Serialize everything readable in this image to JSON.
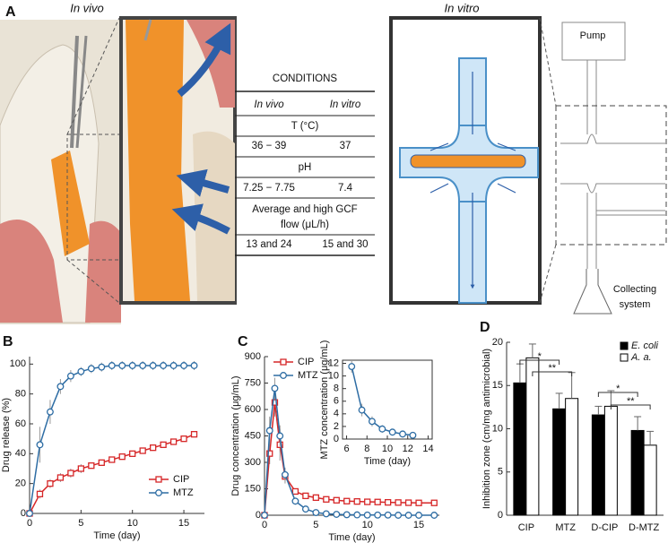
{
  "panel_a": {
    "label": "A",
    "in_vivo": "In vivo",
    "in_vitro": "In vitro",
    "table": {
      "title": "CONDITIONS",
      "columns": [
        "In vivo",
        "In vitro"
      ],
      "rows": [
        {
          "heading": [
            "T (°C)"
          ],
          "values": [
            "36 − 39",
            "37"
          ]
        },
        {
          "heading": [
            "pH"
          ],
          "values": [
            "7.25 − 7.75",
            "7.4"
          ]
        },
        {
          "heading": [
            "Average and high GCF",
            "flow (μL/h)"
          ],
          "values": [
            "13 and 24",
            "15 and 30"
          ]
        }
      ]
    },
    "pump": "Pump",
    "collecting_system": [
      "Collecting",
      "system"
    ]
  },
  "chart_data": [
    {
      "type": "line",
      "label": "B",
      "xlabel": "Time (day)",
      "ylabel": "Drug release (%)",
      "x": [
        0,
        1,
        2,
        3,
        4,
        5,
        6,
        7,
        8,
        9,
        10,
        11,
        12,
        13,
        14,
        15,
        16
      ],
      "xlim": [
        0,
        17
      ],
      "xticks": [
        0,
        5,
        10,
        15
      ],
      "ylim": [
        0,
        105
      ],
      "yticks": [
        0,
        20,
        40,
        60,
        80,
        100
      ],
      "legend": "lower right",
      "series": [
        {
          "name": "CIP",
          "color": "#d62728",
          "marker": "square",
          "values": [
            0,
            13,
            20,
            24,
            27,
            30,
            32,
            34,
            36,
            38,
            40,
            42,
            44,
            46,
            48,
            50,
            53
          ],
          "errors": [
            0,
            3,
            3,
            3,
            3,
            3,
            2,
            2,
            2,
            2,
            2,
            2,
            2,
            2,
            2,
            2,
            2
          ]
        },
        {
          "name": "MTZ",
          "color": "#2e6da4",
          "marker": "circle",
          "values": [
            0,
            46,
            68,
            85,
            92,
            95,
            97,
            98,
            99,
            99,
            99,
            99,
            99,
            99,
            99,
            99,
            99
          ],
          "errors": [
            0,
            12,
            8,
            5,
            4,
            3,
            3,
            3,
            3,
            3,
            3,
            3,
            3,
            3,
            3,
            3,
            3
          ]
        }
      ]
    },
    {
      "type": "line",
      "label": "C",
      "xlabel": "Time (day)",
      "ylabel": "Drug concentration (μg/mL)",
      "x": [
        0,
        0.5,
        1,
        1.5,
        2,
        3,
        4,
        5,
        6,
        7,
        8,
        9,
        10,
        11,
        12,
        13,
        14,
        15,
        16.5
      ],
      "xlim": [
        0,
        17
      ],
      "xticks": [
        0,
        5,
        10,
        15
      ],
      "ylim": [
        0,
        900
      ],
      "yticks": [
        0,
        150,
        300,
        450,
        600,
        750,
        900
      ],
      "legend": "upper left",
      "series": [
        {
          "name": "CIP",
          "color": "#d62728",
          "marker": "square",
          "values": [
            0,
            350,
            640,
            400,
            220,
            135,
            110,
            100,
            90,
            85,
            80,
            78,
            76,
            75,
            73,
            72,
            71,
            70,
            70
          ],
          "errors": [
            0,
            60,
            80,
            90,
            40,
            15,
            10,
            10,
            10,
            8,
            8,
            8,
            8,
            8,
            8,
            8,
            8,
            8,
            8
          ]
        },
        {
          "name": "MTZ",
          "color": "#2e6da4",
          "marker": "circle",
          "values": [
            0,
            480,
            720,
            450,
            230,
            80,
            35,
            15,
            8,
            5,
            3,
            2,
            1,
            1,
            1,
            0,
            0,
            0,
            0
          ],
          "errors": [
            0,
            80,
            60,
            60,
            40,
            20,
            10,
            5,
            3,
            2,
            2,
            1,
            1,
            1,
            1,
            1,
            1,
            1,
            1
          ]
        }
      ]
    },
    {
      "type": "line",
      "xlabel": "Time (day)",
      "ylabel": "MTZ concentration (μg/mL)",
      "x": [
        6.5,
        7.5,
        8.5,
        9.5,
        10.5,
        11.5,
        12.5
      ],
      "xlim": [
        5.6,
        14.4
      ],
      "xticks": [
        6,
        8,
        10,
        12,
        14
      ],
      "ylim": [
        0,
        12.5
      ],
      "yticks": [
        0,
        2,
        4,
        6,
        8,
        10,
        12
      ],
      "series": [
        {
          "color": "#2e6da4",
          "marker": "circle",
          "values": [
            11.5,
            4.6,
            2.8,
            1.6,
            1.1,
            0.8,
            0.6
          ],
          "errors": [
            1,
            1,
            0.8,
            0.6,
            0.4,
            0.3,
            0.3
          ]
        }
      ]
    },
    {
      "type": "bar",
      "label": "D",
      "ylabel": "Inhibition zone (cm/mg antimicrobial)",
      "categories": [
        "CIP",
        "MTZ",
        "D-CIP",
        "D-MTZ"
      ],
      "ylim": [
        0,
        20
      ],
      "yticks": [
        0,
        5,
        10,
        15,
        20
      ],
      "legend": "upper right",
      "series": [
        {
          "name": "E. coli",
          "color": "#000000",
          "values": [
            15.3,
            12.3,
            11.6,
            9.8
          ],
          "errors": [
            2.2,
            1.8,
            1.0,
            1.6
          ]
        },
        {
          "name": "A. a.",
          "color": "#ffffff",
          "values": [
            18.2,
            13.5,
            12.6,
            8.1
          ],
          "errors": [
            1.6,
            3.0,
            1.8,
            1.6
          ]
        }
      ],
      "annotations": [
        "*",
        "**",
        "*",
        "**"
      ]
    }
  ]
}
